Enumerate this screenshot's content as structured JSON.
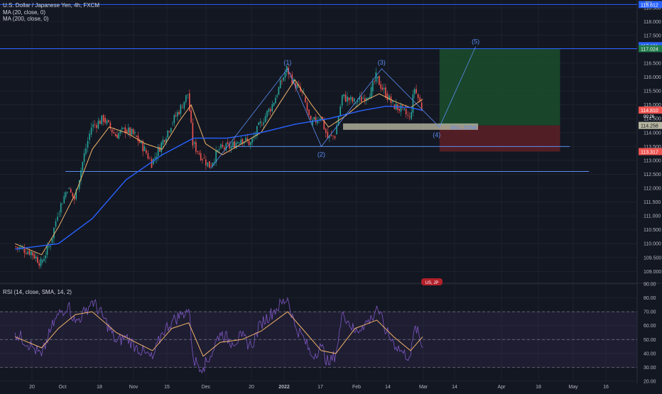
{
  "header": {
    "symbol_line": "U.S. Dollar / Japanese Yen, 4h, FXCM",
    "ma20_label": "MA (20, close, 0)",
    "ma200_label": "MA (200, close, 0)",
    "rsi_label": "RSI (14, close, SMA, 14, 2)",
    "currency": "JPY"
  },
  "colors": {
    "background": "#131722",
    "grid": "#1e222d",
    "candle_up": "#26a69a",
    "candle_down": "#ef5350",
    "ma20": "#f0b26a",
    "ma200": "#2962ff",
    "rsi_line": "#7e57c2",
    "rsi_ma": "#f0b26a",
    "annotation": "#5b8def",
    "axis_text": "#b2b5be",
    "profit_zone": "#1b4a2c",
    "loss_zone": "#5a1f27"
  },
  "chart_data": [
    {
      "type": "candlestick",
      "title": "U.S. Dollar / Japanese Yen, 4h, FXCM",
      "ylim": [
        108.6,
        118.75
      ],
      "y_ticks": [
        "118.500",
        "118.000",
        "117.500",
        "117.000",
        "116.500",
        "116.000",
        "115.500",
        "115.000",
        "114.500",
        "114.000",
        "113.500",
        "113.000",
        "112.500",
        "112.000",
        "111.500",
        "111.000",
        "110.500",
        "110.000",
        "109.500",
        "109.000"
      ],
      "x_ticks": [
        "20",
        "Oct",
        "18",
        "Nov",
        "15",
        "Dec",
        "20",
        "2022",
        "17",
        "Feb",
        "14",
        "Mar",
        "14",
        "Apr",
        "18",
        "May",
        "16"
      ],
      "ohlc_close_path": [
        [
          "Sep 13",
          109.9
        ],
        [
          "Sep 20",
          109.7
        ],
        [
          "Sep 24",
          109.3
        ],
        [
          "Sep 28",
          110.0
        ],
        [
          "Oct 1",
          111.1
        ],
        [
          "Oct 5",
          112.0
        ],
        [
          "Oct 8",
          111.6
        ],
        [
          "Oct 12",
          113.2
        ],
        [
          "Oct 15",
          114.2
        ],
        [
          "Oct 20",
          114.5
        ],
        [
          "Oct 25",
          113.9
        ],
        [
          "Oct 29",
          114.1
        ],
        [
          "Nov 2",
          113.9
        ],
        [
          "Nov 6",
          113.4
        ],
        [
          "Nov 9",
          112.9
        ],
        [
          "Nov 13",
          113.6
        ],
        [
          "Nov 17",
          114.3
        ],
        [
          "Nov 21",
          114.9
        ],
        [
          "Nov 24",
          115.4
        ],
        [
          "Nov 26",
          113.6
        ],
        [
          "Nov 30",
          113.1
        ],
        [
          "Dec 3",
          112.8
        ],
        [
          "Dec 7",
          113.4
        ],
        [
          "Dec 12",
          113.5
        ],
        [
          "Dec 16",
          113.8
        ],
        [
          "Dec 20",
          113.6
        ],
        [
          "Dec 24",
          114.3
        ],
        [
          "Dec 29",
          115.0
        ],
        [
          "Jan 4",
          116.3
        ],
        [
          "Jan 7",
          115.8
        ],
        [
          "Jan 11",
          115.3
        ],
        [
          "Jan 14",
          114.3
        ],
        [
          "Jan 18",
          114.6
        ],
        [
          "Jan 21",
          113.8
        ],
        [
          "Jan 24",
          113.9
        ],
        [
          "Jan 27",
          115.3
        ],
        [
          "Feb 1",
          115.1
        ],
        [
          "Feb 4",
          115.2
        ],
        [
          "Feb 8",
          115.5
        ],
        [
          "Feb 10",
          116.0
        ],
        [
          "Feb 14",
          115.4
        ],
        [
          "Feb 17",
          115.0
        ],
        [
          "Feb 21",
          114.8
        ],
        [
          "Feb 24",
          114.5
        ],
        [
          "Feb 26",
          115.6
        ],
        [
          "Mar 1",
          114.9
        ]
      ],
      "series": [
        {
          "name": "MA (20, close, 0)",
          "color": "#f0b26a",
          "points": [
            [
              "Sep 13",
              110.0
            ],
            [
              "Sep 24",
              109.6
            ],
            [
              "Oct 1",
              110.6
            ],
            [
              "Oct 8",
              111.8
            ],
            [
              "Oct 15",
              113.4
            ],
            [
              "Oct 22",
              114.2
            ],
            [
              "Oct 29",
              114.0
            ],
            [
              "Nov 6",
              113.6
            ],
            [
              "Nov 13",
              113.4
            ],
            [
              "Nov 20",
              114.4
            ],
            [
              "Nov 25",
              115.0
            ],
            [
              "Dec 1",
              113.6
            ],
            [
              "Dec 8",
              113.2
            ],
            [
              "Dec 16",
              113.6
            ],
            [
              "Dec 24",
              114.0
            ],
            [
              "Jan 1",
              115.1
            ],
            [
              "Jan 7",
              115.9
            ],
            [
              "Jan 14",
              115.0
            ],
            [
              "Jan 21",
              114.2
            ],
            [
              "Jan 28",
              114.6
            ],
            [
              "Feb 4",
              115.1
            ],
            [
              "Feb 11",
              115.4
            ],
            [
              "Feb 18",
              115.1
            ],
            [
              "Feb 24",
              114.9
            ],
            [
              "Mar 1",
              115.2
            ]
          ]
        },
        {
          "name": "MA (200, close, 0)",
          "color": "#2962ff",
          "points": [
            [
              "Sep 13",
              109.8
            ],
            [
              "Oct 1",
              110.0
            ],
            [
              "Oct 15",
              110.9
            ],
            [
              "Oct 29",
              112.3
            ],
            [
              "Nov 13",
              113.2
            ],
            [
              "Nov 26",
              113.8
            ],
            [
              "Dec 10",
              113.8
            ],
            [
              "Dec 24",
              114.0
            ],
            [
              "Jan 7",
              114.3
            ],
            [
              "Jan 21",
              114.5
            ],
            [
              "Feb 4",
              114.8
            ],
            [
              "Feb 14",
              114.95
            ],
            [
              "Feb 24",
              114.9
            ],
            [
              "Mar 1",
              114.8
            ]
          ]
        }
      ],
      "price_labels": {
        "upper_line": "118.612",
        "entry_line": "117.024",
        "entry_marker": "117.131",
        "last_price": "114.810",
        "last_price_sub": "00:26",
        "support_box": "114.258",
        "stop": "113.317"
      },
      "annotations": {
        "wave_labels": [
          "(1)",
          "(2)",
          "(3)",
          "(4)",
          "(5)"
        ],
        "box_text": "SELL ZONE",
        "horizontal_levels": [
          118.612,
          117.024,
          113.5,
          112.6
        ],
        "support_box_range": [
          114.1,
          114.33
        ],
        "position": {
          "entry": 114.258,
          "target": 117.024,
          "stop": 113.317,
          "start": "Mar 8",
          "end": "Apr 27"
        },
        "event_badge": "US, JP"
      }
    },
    {
      "type": "line",
      "title": "RSI (14, close, SMA, 14, 2)",
      "ylim": [
        20,
        90
      ],
      "y_ticks": [
        "90.00",
        "80.00",
        "70.00",
        "60.00",
        "50.00",
        "40.00",
        "30.00",
        "20.00"
      ],
      "bands": {
        "upper": 70,
        "lower": 30,
        "middle": 50
      },
      "series": [
        {
          "name": "RSI",
          "color": "#7e57c2",
          "points": [
            [
              "Sep 13",
              55
            ],
            [
              "Sep 20",
              45
            ],
            [
              "Sep 24",
              38
            ],
            [
              "Sep 28",
              58
            ],
            [
              "Oct 1",
              68
            ],
            [
              "Oct 5",
              75
            ],
            [
              "Oct 8",
              62
            ],
            [
              "Oct 12",
              70
            ],
            [
              "Oct 15",
              78
            ],
            [
              "Oct 20",
              65
            ],
            [
              "Oct 25",
              48
            ],
            [
              "Oct 29",
              52
            ],
            [
              "Nov 2",
              45
            ],
            [
              "Nov 6",
              40
            ],
            [
              "Nov 9",
              36
            ],
            [
              "Nov 13",
              55
            ],
            [
              "Nov 17",
              63
            ],
            [
              "Nov 21",
              68
            ],
            [
              "Nov 24",
              72
            ],
            [
              "Nov 26",
              35
            ],
            [
              "Nov 30",
              30
            ],
            [
              "Dec 3",
              38
            ],
            [
              "Dec 7",
              55
            ],
            [
              "Dec 12",
              48
            ],
            [
              "Dec 16",
              52
            ],
            [
              "Dec 20",
              45
            ],
            [
              "Dec 24",
              62
            ],
            [
              "Dec 29",
              70
            ],
            [
              "Jan 4",
              80
            ],
            [
              "Jan 7",
              60
            ],
            [
              "Jan 11",
              50
            ],
            [
              "Jan 14",
              38
            ],
            [
              "Jan 18",
              45
            ],
            [
              "Jan 21",
              32
            ],
            [
              "Jan 24",
              40
            ],
            [
              "Jan 27",
              70
            ],
            [
              "Feb 1",
              55
            ],
            [
              "Feb 4",
              60
            ],
            [
              "Feb 8",
              65
            ],
            [
              "Feb 10",
              74
            ],
            [
              "Feb 14",
              55
            ],
            [
              "Feb 17",
              48
            ],
            [
              "Feb 21",
              40
            ],
            [
              "Feb 24",
              38
            ],
            [
              "Feb 26",
              60
            ],
            [
              "Mar 1",
              44
            ]
          ]
        },
        {
          "name": "RSI-based MA",
          "color": "#f0b26a",
          "points": [
            [
              "Sep 13",
              52
            ],
            [
              "Sep 24",
              44
            ],
            [
              "Oct 1",
              58
            ],
            [
              "Oct 8",
              68
            ],
            [
              "Oct 15",
              70
            ],
            [
              "Oct 25",
              55
            ],
            [
              "Nov 2",
              48
            ],
            [
              "Nov 9",
              42
            ],
            [
              "Nov 17",
              58
            ],
            [
              "Nov 24",
              62
            ],
            [
              "Nov 30",
              38
            ],
            [
              "Dec 7",
              48
            ],
            [
              "Dec 16",
              50
            ],
            [
              "Dec 24",
              56
            ],
            [
              "Jan 4",
              70
            ],
            [
              "Jan 11",
              56
            ],
            [
              "Jan 18",
              42
            ],
            [
              "Jan 24",
              40
            ],
            [
              "Feb 1",
              58
            ],
            [
              "Feb 10",
              64
            ],
            [
              "Feb 17",
              52
            ],
            [
              "Feb 24",
              42
            ],
            [
              "Mar 1",
              52
            ]
          ]
        }
      ]
    }
  ]
}
